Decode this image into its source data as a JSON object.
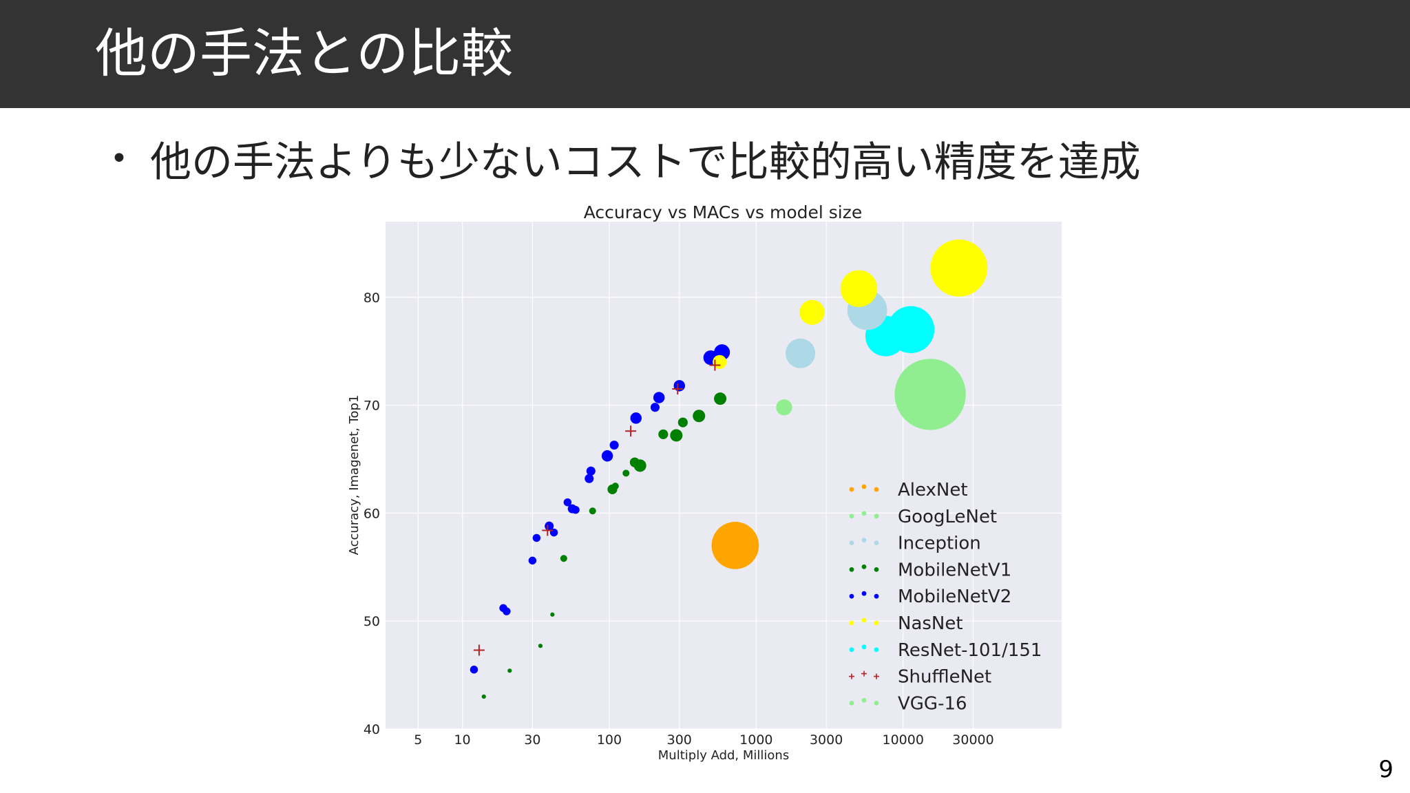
{
  "slide": {
    "title": "他の手法との比較",
    "bullet_symbol": "•",
    "bullet": "他の手法よりも少ないコストで比較的高い精度を達成",
    "page_number": "9"
  },
  "colors": {
    "header_bg": "#333333",
    "plot_bg": "#eaeaf2",
    "grid": "#ffffff"
  },
  "chart_data": {
    "type": "scatter",
    "title": "Accuracy vs MACs vs model size",
    "xlabel": "Multiply Add, Millions",
    "ylabel": "Accuracy, Imagenet, Top1",
    "xscale": "log",
    "xlim": [
      3,
      120000
    ],
    "ylim": [
      40,
      87
    ],
    "xticks": [
      5,
      10,
      30,
      100,
      300,
      1000,
      3000,
      10000,
      30000
    ],
    "xtick_labels": [
      "5",
      "10",
      "30",
      "100",
      "300",
      "1000",
      "3000",
      "10000",
      "30000"
    ],
    "yticks": [
      40,
      50,
      60,
      70,
      80
    ],
    "ytick_labels": [
      "40",
      "50",
      "60",
      "70",
      "80"
    ],
    "grid": true,
    "legend_position": "lower-right",
    "series": [
      {
        "name": "AlexNet",
        "color": "#ffa500",
        "marker": "circle",
        "points": [
          {
            "x": 720,
            "y": 57.0,
            "size": 61
          }
        ]
      },
      {
        "name": "GoogLeNet",
        "color": "#90ee90",
        "marker": "circle",
        "points": [
          {
            "x": 1550,
            "y": 69.8,
            "size": 7
          }
        ]
      },
      {
        "name": "Inception",
        "color": "#add8e6",
        "marker": "circle",
        "points": [
          {
            "x": 2000,
            "y": 74.8,
            "size": 24
          },
          {
            "x": 5700,
            "y": 78.8,
            "size": 43
          }
        ]
      },
      {
        "name": "MobileNetV1",
        "color": "#008000",
        "marker": "circle",
        "points": [
          {
            "x": 14,
            "y": 43.0,
            "size": 0.5
          },
          {
            "x": 21,
            "y": 45.4,
            "size": 0.5
          },
          {
            "x": 34,
            "y": 47.7,
            "size": 0.5
          },
          {
            "x": 41,
            "y": 50.6,
            "size": 0.5
          },
          {
            "x": 49,
            "y": 55.8,
            "size": 1.3
          },
          {
            "x": 77,
            "y": 60.2,
            "size": 1.3
          },
          {
            "x": 110,
            "y": 62.5,
            "size": 1.3
          },
          {
            "x": 105,
            "y": 62.2,
            "size": 2.6
          },
          {
            "x": 130,
            "y": 63.7,
            "size": 1.3
          },
          {
            "x": 149,
            "y": 64.7,
            "size": 2.6
          },
          {
            "x": 162,
            "y": 64.4,
            "size": 4.2
          },
          {
            "x": 233,
            "y": 67.3,
            "size": 2.6
          },
          {
            "x": 286,
            "y": 67.2,
            "size": 4.2
          },
          {
            "x": 317,
            "y": 68.4,
            "size": 2.6
          },
          {
            "x": 408,
            "y": 69.0,
            "size": 4.2
          },
          {
            "x": 569,
            "y": 70.6,
            "size": 4.2
          }
        ]
      },
      {
        "name": "MobileNetV2",
        "color": "#0000ff",
        "marker": "circle",
        "points": [
          {
            "x": 12,
            "y": 45.5,
            "size": 1.7
          },
          {
            "x": 19,
            "y": 51.2,
            "size": 1.7
          },
          {
            "x": 20,
            "y": 50.9,
            "size": 1.7
          },
          {
            "x": 30,
            "y": 55.6,
            "size": 1.7
          },
          {
            "x": 32,
            "y": 57.7,
            "size": 1.7
          },
          {
            "x": 39,
            "y": 58.8,
            "size": 2.2
          },
          {
            "x": 42,
            "y": 58.2,
            "size": 1.7
          },
          {
            "x": 52,
            "y": 61.0,
            "size": 1.7
          },
          {
            "x": 56,
            "y": 60.4,
            "size": 2.2
          },
          {
            "x": 59,
            "y": 60.3,
            "size": 1.7
          },
          {
            "x": 73,
            "y": 63.2,
            "size": 2.2
          },
          {
            "x": 75,
            "y": 63.9,
            "size": 2.2
          },
          {
            "x": 97,
            "y": 65.3,
            "size": 3.5
          },
          {
            "x": 108,
            "y": 66.3,
            "size": 2.2
          },
          {
            "x": 152,
            "y": 68.8,
            "size": 3.5
          },
          {
            "x": 205,
            "y": 69.8,
            "size": 2.2
          },
          {
            "x": 218,
            "y": 70.7,
            "size": 3.5
          },
          {
            "x": 300,
            "y": 71.8,
            "size": 3.5
          },
          {
            "x": 490,
            "y": 74.4,
            "size": 5.8
          },
          {
            "x": 585,
            "y": 74.9,
            "size": 6.9
          }
        ]
      },
      {
        "name": "NasNet",
        "color": "#ffff00",
        "marker": "circle",
        "points": [
          {
            "x": 564,
            "y": 74.0,
            "size": 5.3
          },
          {
            "x": 2400,
            "y": 78.6,
            "size": 17
          },
          {
            "x": 5000,
            "y": 80.8,
            "size": 37
          },
          {
            "x": 24000,
            "y": 82.7,
            "size": 89
          }
        ]
      },
      {
        "name": "ResNet-101/151",
        "color": "#00ffff",
        "marker": "circle",
        "points": [
          {
            "x": 7600,
            "y": 76.4,
            "size": 44.5
          },
          {
            "x": 11300,
            "y": 77.0,
            "size": 60.2
          }
        ]
      },
      {
        "name": "ShuffleNet",
        "color": "#b22222",
        "marker": "plus",
        "points": [
          {
            "x": 13,
            "y": 47.3
          },
          {
            "x": 38,
            "y": 58.4
          },
          {
            "x": 140,
            "y": 67.6
          },
          {
            "x": 292,
            "y": 71.5
          },
          {
            "x": 524,
            "y": 73.7
          }
        ]
      },
      {
        "name": "VGG-16",
        "color": "#90ee90",
        "marker": "circle",
        "points": [
          {
            "x": 15300,
            "y": 71.0,
            "size": 138
          }
        ]
      }
    ]
  }
}
